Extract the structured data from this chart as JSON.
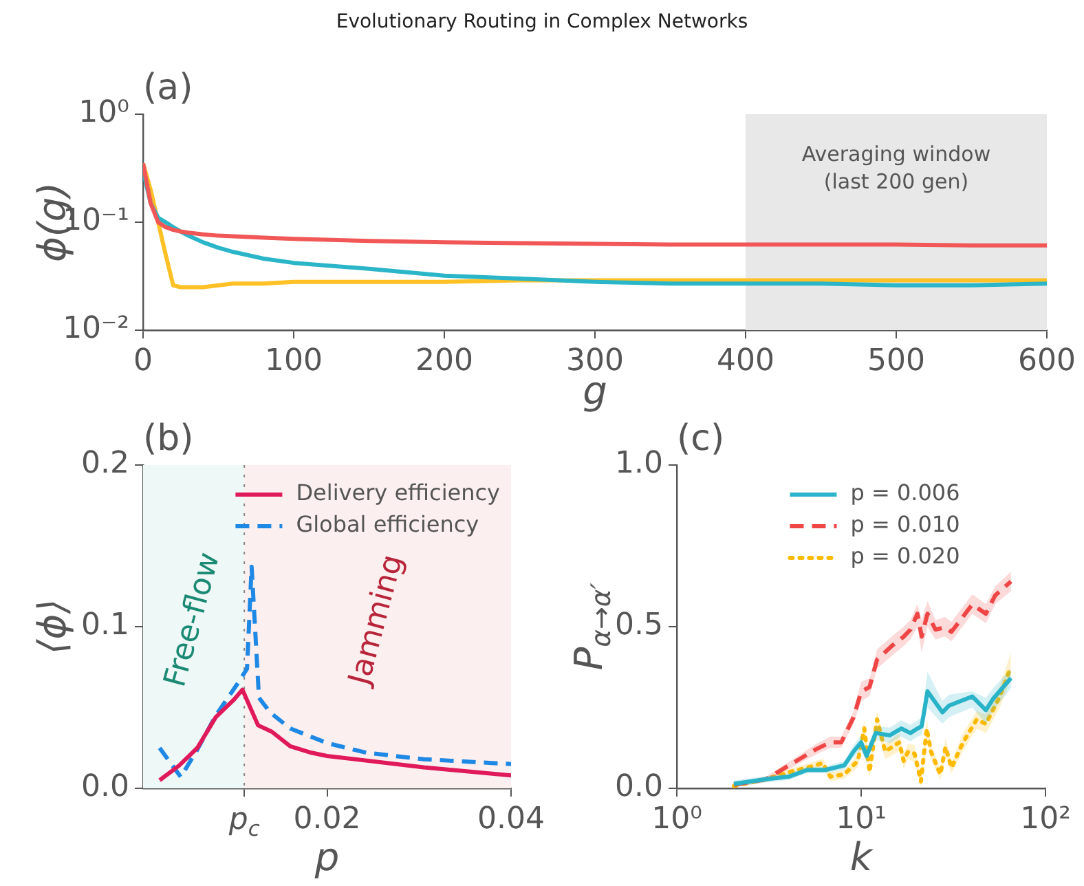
{
  "chart_data": [
    {
      "type": "line",
      "title": "Evolutionary Routing in Complex Networks",
      "xlabel": "g",
      "ylabel": "ϕ(g)",
      "annotations": [
        "(a)"
      ],
      "log": "y",
      "xlim": [
        0,
        600
      ],
      "xticks": [
        0,
        100,
        200,
        300,
        400,
        500,
        600
      ],
      "ylim": [
        0.01,
        1
      ],
      "yticks": [
        {
          "value": 0.01,
          "label": "10⁻²"
        },
        {
          "value": 0.1,
          "label": "10⁻¹"
        },
        {
          "value": 1,
          "label": "10⁰"
        }
      ],
      "marker": "none",
      "line_style": "solid",
      "x": [
        0,
        5,
        10,
        15,
        20,
        25,
        30,
        40,
        50,
        60,
        80,
        100,
        150,
        200,
        250,
        300,
        350,
        400,
        450,
        500,
        550,
        600
      ],
      "series": [
        {
          "color": "#f25757",
          "values": [
            0.35,
            0.15,
            0.1,
            0.09,
            0.085,
            0.082,
            0.08,
            0.077,
            0.075,
            0.074,
            0.072,
            0.07,
            0.067,
            0.065,
            0.064,
            0.063,
            0.062,
            0.062,
            0.062,
            0.062,
            0.061,
            0.061
          ]
        },
        {
          "color": "#2bb5c8",
          "values": [
            0.3,
            0.15,
            0.11,
            0.1,
            0.09,
            0.082,
            0.075,
            0.065,
            0.058,
            0.053,
            0.046,
            0.042,
            0.037,
            0.032,
            0.03,
            0.028,
            0.027,
            0.027,
            0.027,
            0.026,
            0.026,
            0.027
          ]
        },
        {
          "color": "#ffc125",
          "values": [
            0.35,
            0.2,
            0.1,
            0.05,
            0.026,
            0.025,
            0.025,
            0.025,
            0.026,
            0.027,
            0.027,
            0.028,
            0.028,
            0.028,
            0.029,
            0.029,
            0.029,
            0.029,
            0.029,
            0.029,
            0.029,
            0.029
          ]
        }
      ],
      "bands": [
        {
          "axis": "x",
          "from": 400,
          "to": 600,
          "label": "Averaging window\n(last 200 gen)",
          "color": "#e8e8e8"
        }
      ]
    },
    {
      "type": "line",
      "xlabel": "p",
      "ylabel": "⟨ϕ⟩",
      "annotations": [
        "(b)"
      ],
      "xlim": [
        0,
        0.04
      ],
      "xticks": [
        {
          "value": 0.011,
          "label": "p$_{c}$"
        },
        0.02,
        0.04
      ],
      "ylim": [
        0,
        0.2
      ],
      "yticks": [
        {
          "value": 0,
          "label": "0.0"
        },
        0.1,
        0.2
      ],
      "marker": "none",
      "legend": "top right",
      "series": [
        {
          "name": "Delivery efficiency",
          "color": "#e0195a",
          "line_style": "solid",
          "x": [
            0.0018,
            0.0039,
            0.0059,
            0.0079,
            0.0099,
            0.0108,
            0.0125,
            0.014,
            0.016,
            0.0183,
            0.02,
            0.0305,
            0.04
          ],
          "values": [
            0.005,
            0.014,
            0.025,
            0.044,
            0.055,
            0.061,
            0.039,
            0.035,
            0.026,
            0.022,
            0.02,
            0.013,
            0.008
          ]
        },
        {
          "name": "Global efficiency",
          "color": "#1e88e5",
          "line_style": "dashed",
          "x": [
            0.0018,
            0.0041,
            0.0059,
            0.0079,
            0.0103,
            0.0113,
            0.0118,
            0.0126,
            0.0138,
            0.016,
            0.02,
            0.0243,
            0.0305,
            0.04
          ],
          "values": [
            0.025,
            0.007,
            0.024,
            0.045,
            0.065,
            0.074,
            0.137,
            0.056,
            0.047,
            0.037,
            0.028,
            0.022,
            0.018,
            0.015
          ]
        }
      ],
      "bands": [
        {
          "axis": "x",
          "from": 0,
          "to": 0.011,
          "label": "Free-flow",
          "color": "#eef8f6"
        },
        {
          "axis": "x",
          "from": 0.011,
          "to": 0.04,
          "label": "Jamming",
          "color": "#fcefef"
        }
      ],
      "ref_lines": [
        {
          "axis": "x",
          "value": 0.011,
          "color": "#888888",
          "line_style": "dotted"
        }
      ]
    },
    {
      "type": "line",
      "xlabel": "k",
      "ylabel": "P$_{α→α′}$",
      "annotations": [
        "(c)"
      ],
      "log": "x",
      "xlim": [
        1,
        100
      ],
      "xticks": [
        {
          "value": 1,
          "label": "10⁰"
        },
        {
          "value": 10,
          "label": "10¹"
        },
        {
          "value": 100,
          "label": "10²"
        }
      ],
      "ylim": [
        0,
        1
      ],
      "yticks": [
        {
          "value": 0,
          "label": "0.0"
        },
        {
          "value": 0.5,
          "label": "0.5"
        },
        {
          "value": 1,
          "label": "1.0"
        }
      ],
      "marker": "none",
      "legend": "top",
      "series": [
        {
          "name": "p = 0.006",
          "color": "#2ab3c9",
          "line_style": "solid",
          "x": [
            2.04,
            3.05,
            4.06,
            5.1,
            6.4,
            8.1,
            9.1,
            10,
            10.7,
            12,
            14.3,
            16.5,
            18.5,
            20.2,
            21.3,
            22.9,
            27.6,
            30,
            40.1,
            47.5,
            52,
            65
          ],
          "values": [
            0.014,
            0.028,
            0.036,
            0.057,
            0.057,
            0.071,
            0.114,
            0.142,
            0.1,
            0.171,
            0.164,
            0.185,
            0.171,
            0.185,
            0.192,
            0.3,
            0.235,
            0.256,
            0.284,
            0.242,
            0.277,
            0.341
          ],
          "lower": [
            0.004,
            0.018,
            0.026,
            0.047,
            0.047,
            0.058,
            0.095,
            0.12,
            0.08,
            0.15,
            0.14,
            0.16,
            0.145,
            0.16,
            0.165,
            0.25,
            0.2,
            0.22,
            0.25,
            0.2,
            0.24,
            0.31
          ],
          "upper": [
            0.024,
            0.038,
            0.046,
            0.067,
            0.067,
            0.084,
            0.133,
            0.164,
            0.12,
            0.192,
            0.188,
            0.21,
            0.197,
            0.21,
            0.22,
            0.36,
            0.27,
            0.29,
            0.3,
            0.28,
            0.31,
            0.37
          ]
        },
        {
          "name": "p = 0.010",
          "color": "#f04545",
          "line_style": "dashed",
          "x": [
            2.04,
            3.05,
            4.06,
            5.7,
            6.8,
            7.8,
            9.1,
            10,
            11.1,
            12.2,
            14.7,
            17,
            18.5,
            20.2,
            21.3,
            22.9,
            25.3,
            28.5,
            30.9,
            40.1,
            47.5,
            53.4,
            65
          ],
          "values": [
            0.011,
            0.028,
            0.071,
            0.121,
            0.142,
            0.142,
            0.22,
            0.299,
            0.313,
            0.398,
            0.441,
            0.469,
            0.491,
            0.54,
            0.469,
            0.54,
            0.491,
            0.498,
            0.484,
            0.569,
            0.54,
            0.597,
            0.64
          ],
          "lower": [
            0.005,
            0.02,
            0.06,
            0.105,
            0.125,
            0.125,
            0.2,
            0.27,
            0.285,
            0.37,
            0.41,
            0.44,
            0.46,
            0.5,
            0.42,
            0.5,
            0.46,
            0.47,
            0.455,
            0.54,
            0.51,
            0.57,
            0.61
          ],
          "upper": [
            0.017,
            0.036,
            0.082,
            0.137,
            0.16,
            0.16,
            0.24,
            0.33,
            0.34,
            0.43,
            0.47,
            0.5,
            0.52,
            0.57,
            0.52,
            0.58,
            0.52,
            0.53,
            0.515,
            0.6,
            0.57,
            0.625,
            0.67
          ]
        },
        {
          "name": "p = 0.020",
          "color": "#ffbb00",
          "line_style": "dotted",
          "x": [
            2.04,
            3.05,
            4.06,
            5.1,
            6.2,
            6.8,
            8.1,
            9.6,
            10.4,
            11.1,
            12.2,
            13.5,
            16.1,
            17,
            18,
            19.5,
            21.1,
            22.7,
            23.9,
            26.9,
            28.7,
            30.9,
            35.7,
            42.4,
            47.5,
            56.5,
            65
          ],
          "values": [
            0.007,
            0.028,
            0.05,
            0.064,
            0.078,
            0.036,
            0.043,
            0.085,
            0.185,
            0.05,
            0.213,
            0.114,
            0.142,
            0.085,
            0.114,
            0.107,
            0.021,
            0.185,
            0.114,
            0.043,
            0.128,
            0.064,
            0.142,
            0.213,
            0.199,
            0.284,
            0.377
          ],
          "lower": [
            0.002,
            0.02,
            0.04,
            0.052,
            0.064,
            0.022,
            0.03,
            0.065,
            0.16,
            0.03,
            0.185,
            0.09,
            0.115,
            0.06,
            0.09,
            0.08,
            0.005,
            0.155,
            0.09,
            0.025,
            0.1,
            0.045,
            0.115,
            0.185,
            0.17,
            0.25,
            0.34
          ],
          "upper": [
            0.012,
            0.036,
            0.06,
            0.076,
            0.092,
            0.05,
            0.056,
            0.105,
            0.21,
            0.07,
            0.24,
            0.138,
            0.17,
            0.11,
            0.138,
            0.134,
            0.04,
            0.215,
            0.138,
            0.061,
            0.156,
            0.083,
            0.17,
            0.24,
            0.228,
            0.318,
            0.42
          ]
        }
      ]
    }
  ]
}
